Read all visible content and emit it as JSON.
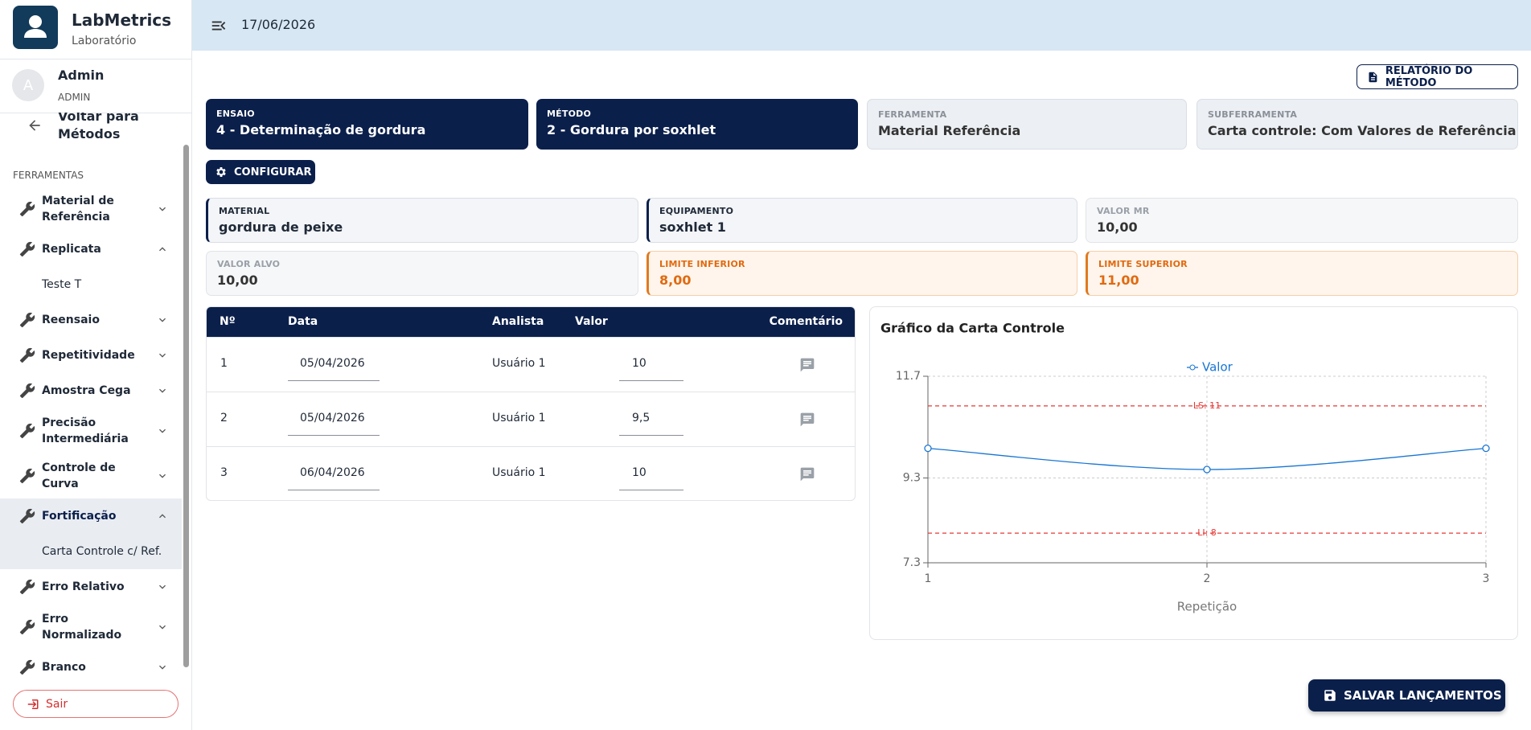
{
  "sidebar": {
    "app_name": "LabMetrics",
    "app_subtitle": "Laboratório",
    "avatar": "A",
    "user_name": "Admin",
    "user_role": "ADMIN",
    "back_link": "Voltar para Métodos",
    "section": "FERRAMENTAS",
    "items": [
      {
        "label": "Material de Referência"
      },
      {
        "label": "Replicata",
        "children": [
          "Teste T"
        ]
      },
      {
        "label": "Reensaio"
      },
      {
        "label": "Repetitividade"
      },
      {
        "label": "Amostra Cega"
      },
      {
        "label": "Precisão Intermediária"
      },
      {
        "label": "Controle de Curva"
      },
      {
        "label": "Fortificação",
        "children": [
          "Carta Controle c/ Ref."
        ]
      },
      {
        "label": "Erro Relativo"
      },
      {
        "label": "Erro Normalizado"
      },
      {
        "label": "Branco"
      }
    ],
    "active": {
      "item": 7,
      "child": 0
    },
    "logout": "Sair"
  },
  "header": {
    "date": "17/06/2026"
  },
  "report_button": "RELATÓRIO DO MÉTODO",
  "context_cards": [
    {
      "label": "ENSAIO",
      "value": "4 - Determinação de gordura"
    },
    {
      "label": "MÉTODO",
      "value": "2 - Gordura por soxhlet"
    },
    {
      "label": "FERRAMENTA",
      "value": "Material Referência"
    },
    {
      "label": "SUBFERRAMENTA",
      "value": "Carta controle: Com Valores de Referência"
    }
  ],
  "configure_button": "CONFIGURAR",
  "info_cards": [
    {
      "label": "MATERIAL",
      "value": "gordura de peixe"
    },
    {
      "label": "EQUIPAMENTO",
      "value": "soxhlet 1"
    },
    {
      "label": "VALOR MR",
      "value": "10,00"
    },
    {
      "label": "VALOR ALVO",
      "value": "10,00"
    },
    {
      "label": "LIMITE INFERIOR",
      "value": "8,00"
    },
    {
      "label": "LIMITE SUPERIOR",
      "value": "11,00"
    }
  ],
  "table": {
    "columns": [
      "Nº",
      "Data",
      "Analista",
      "Valor",
      "Comentário"
    ],
    "rows": [
      [
        "1",
        "05/04/2026",
        "Usuário 1",
        "10"
      ],
      [
        "2",
        "05/04/2026",
        "Usuário 1",
        "9,5"
      ],
      [
        "3",
        "06/04/2026",
        "Usuário 1",
        "10"
      ]
    ]
  },
  "chart_data": {
    "type": "line",
    "title": "Gráfico da Carta Controle",
    "x_label": "Repetição",
    "x": [
      1,
      2,
      3
    ],
    "xlim": [
      1,
      3
    ],
    "xticks": [
      1,
      2,
      3
    ],
    "ylim": [
      7.3,
      11.7
    ],
    "yticks": [
      7.3,
      9.3,
      11.7
    ],
    "grid": true,
    "legend": "top",
    "series": [
      {
        "name": "Valor",
        "color": "#1976d2",
        "values": [
          10,
          9.5,
          10
        ]
      }
    ],
    "reference_lines": [
      {
        "value": 11,
        "label": "LS: 11",
        "color": "#e53935"
      },
      {
        "value": 8,
        "label": "LI: 8",
        "color": "#e53935"
      }
    ]
  },
  "save_button": "SALVAR LANÇAMENTOS"
}
